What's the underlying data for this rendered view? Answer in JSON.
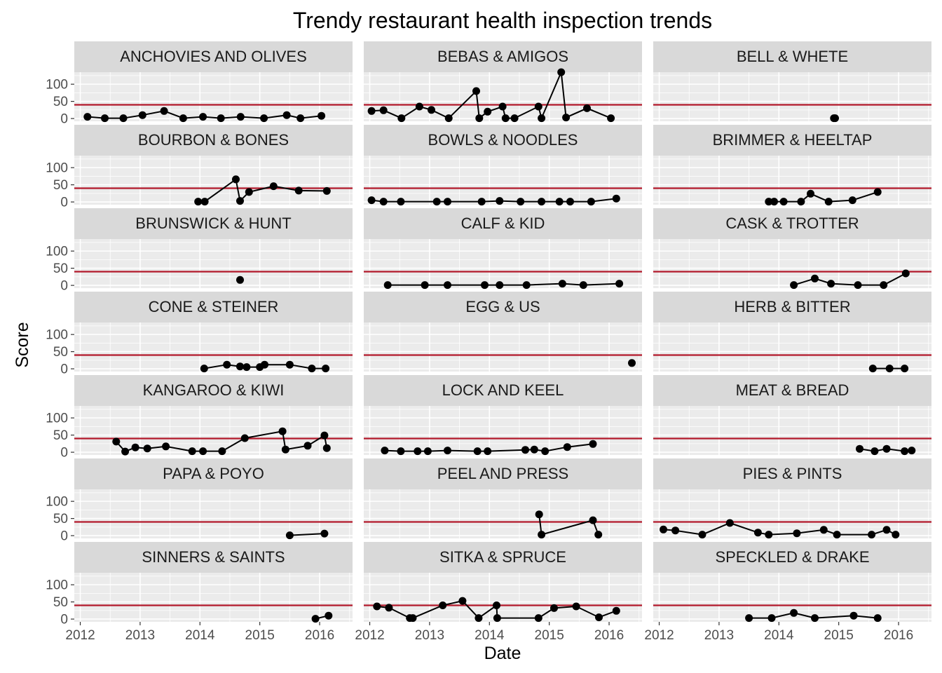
{
  "chart_data": {
    "type": "line",
    "title": "Trendy restaurant health inspection trends",
    "xlabel": "Date",
    "ylabel": "Score",
    "layout": "facet grid, 7 rows x 3 columns",
    "xlim": [
      2011.9,
      2016.55
    ],
    "ylim": [
      -8,
      135
    ],
    "x_ticks": [
      "2012",
      "2013",
      "2014",
      "2015",
      "2016"
    ],
    "y_ticks": [
      "0",
      "50",
      "100"
    ],
    "reference_line": {
      "y": 40,
      "color": "#b2182b"
    },
    "colors": {
      "panel_background": "#ebebeb",
      "grid": "#ffffff",
      "strip_background": "#d9d9d9",
      "points": "#000000"
    },
    "facets": [
      {
        "name": "ANCHOVIES AND OLIVES",
        "points": [
          [
            2012.12,
            5
          ],
          [
            2012.41,
            1
          ],
          [
            2012.72,
            1
          ],
          [
            2013.04,
            10
          ],
          [
            2013.4,
            22
          ],
          [
            2013.72,
            1
          ],
          [
            2014.05,
            5
          ],
          [
            2014.35,
            1
          ],
          [
            2014.68,
            5
          ],
          [
            2015.07,
            1
          ],
          [
            2015.45,
            10
          ],
          [
            2015.68,
            1
          ],
          [
            2016.03,
            8
          ]
        ]
      },
      {
        "name": "BEBAS & AMIGOS",
        "points": [
          [
            2012.03,
            22
          ],
          [
            2012.23,
            24
          ],
          [
            2012.53,
            1
          ],
          [
            2012.83,
            35
          ],
          [
            2013.03,
            25
          ],
          [
            2013.32,
            1
          ],
          [
            2013.78,
            80
          ],
          [
            2013.83,
            1
          ],
          [
            2013.97,
            20
          ],
          [
            2014.22,
            35
          ],
          [
            2014.27,
            1
          ],
          [
            2014.42,
            1
          ],
          [
            2014.82,
            35
          ],
          [
            2014.87,
            1
          ],
          [
            2015.2,
            135
          ],
          [
            2015.28,
            3
          ],
          [
            2015.63,
            30
          ],
          [
            2016.03,
            1
          ]
        ]
      },
      {
        "name": "BELL & WHETE",
        "points": [
          [
            2014.92,
            1
          ],
          [
            2014.94,
            1
          ]
        ]
      },
      {
        "name": "BOURBON & BONES",
        "points": [
          [
            2013.97,
            1
          ],
          [
            2014.08,
            1
          ],
          [
            2014.6,
            66
          ],
          [
            2014.67,
            3
          ],
          [
            2014.82,
            29
          ],
          [
            2015.23,
            46
          ],
          [
            2015.65,
            33
          ],
          [
            2016.12,
            32
          ]
        ]
      },
      {
        "name": "BOWLS & NOODLES",
        "points": [
          [
            2012.03,
            5
          ],
          [
            2012.23,
            1
          ],
          [
            2012.52,
            1
          ],
          [
            2013.12,
            1
          ],
          [
            2013.3,
            1
          ],
          [
            2013.87,
            1
          ],
          [
            2014.17,
            3
          ],
          [
            2014.52,
            1
          ],
          [
            2014.87,
            1
          ],
          [
            2015.17,
            1
          ],
          [
            2015.35,
            1
          ],
          [
            2015.7,
            1
          ],
          [
            2016.12,
            10
          ]
        ]
      },
      {
        "name": "BRIMMER & HEELTAP",
        "points": [
          [
            2013.83,
            1
          ],
          [
            2013.92,
            1
          ],
          [
            2014.08,
            1
          ],
          [
            2014.37,
            1
          ],
          [
            2014.53,
            24
          ],
          [
            2014.83,
            1
          ],
          [
            2015.23,
            5
          ],
          [
            2015.65,
            29
          ]
        ]
      },
      {
        "name": "BRUNSWICK & HUNT",
        "points": [
          [
            2014.67,
            16
          ]
        ]
      },
      {
        "name": "CALF & KID",
        "points": [
          [
            2012.3,
            1
          ],
          [
            2012.92,
            1
          ],
          [
            2013.3,
            1
          ],
          [
            2013.92,
            1
          ],
          [
            2014.17,
            1
          ],
          [
            2014.62,
            1
          ],
          [
            2015.22,
            5
          ],
          [
            2015.57,
            1
          ],
          [
            2016.17,
            5
          ]
        ]
      },
      {
        "name": "CASK & TROTTER",
        "points": [
          [
            2014.25,
            1
          ],
          [
            2014.6,
            20
          ],
          [
            2014.87,
            5
          ],
          [
            2015.32,
            1
          ],
          [
            2015.75,
            1
          ],
          [
            2016.12,
            35
          ]
        ]
      },
      {
        "name": "CONE & STEINER",
        "points": [
          [
            2014.07,
            1
          ],
          [
            2014.45,
            12
          ],
          [
            2014.67,
            7
          ],
          [
            2014.78,
            5
          ],
          [
            2015,
            5
          ],
          [
            2015.08,
            12
          ],
          [
            2015.5,
            12
          ],
          [
            2015.87,
            1
          ],
          [
            2016.1,
            1
          ]
        ]
      },
      {
        "name": "EGG & US",
        "points": [
          [
            2016.38,
            17
          ]
        ]
      },
      {
        "name": "HERB & BITTER",
        "points": [
          [
            2015.57,
            1
          ],
          [
            2015.85,
            1
          ],
          [
            2016.1,
            1
          ]
        ]
      },
      {
        "name": "KANGAROO & KIWI",
        "points": [
          [
            2012.6,
            31
          ],
          [
            2012.75,
            2
          ],
          [
            2012.92,
            14
          ],
          [
            2013.12,
            11
          ],
          [
            2013.43,
            17
          ],
          [
            2013.87,
            3
          ],
          [
            2014.05,
            3
          ],
          [
            2014.37,
            3
          ],
          [
            2014.75,
            41
          ],
          [
            2015.38,
            61
          ],
          [
            2015.43,
            8
          ],
          [
            2015.8,
            19
          ],
          [
            2016.08,
            49
          ],
          [
            2016.12,
            12
          ]
        ]
      },
      {
        "name": "LOCK AND KEEL",
        "points": [
          [
            2012.25,
            5
          ],
          [
            2012.52,
            3
          ],
          [
            2012.8,
            3
          ],
          [
            2012.97,
            3
          ],
          [
            2013.3,
            5
          ],
          [
            2013.8,
            3
          ],
          [
            2013.97,
            3
          ],
          [
            2014.6,
            7
          ],
          [
            2014.75,
            8
          ],
          [
            2014.93,
            3
          ],
          [
            2015.3,
            15
          ],
          [
            2015.73,
            24
          ]
        ]
      },
      {
        "name": "MEAT & BREAD",
        "points": [
          [
            2015.35,
            10
          ],
          [
            2015.6,
            3
          ],
          [
            2015.8,
            10
          ],
          [
            2016.1,
            3
          ],
          [
            2016.22,
            5
          ]
        ]
      },
      {
        "name": "PAPA & POYO",
        "points": [
          [
            2015.5,
            1
          ],
          [
            2016.08,
            6
          ]
        ]
      },
      {
        "name": "PEEL AND PRESS",
        "points": [
          [
            2014.83,
            62
          ],
          [
            2014.87,
            3
          ],
          [
            2015.73,
            45
          ],
          [
            2015.82,
            3
          ]
        ]
      },
      {
        "name": "PIES & PINTS",
        "points": [
          [
            2012.07,
            18
          ],
          [
            2012.27,
            15
          ],
          [
            2012.72,
            3
          ],
          [
            2013.18,
            37
          ],
          [
            2013.65,
            9
          ],
          [
            2013.83,
            3
          ],
          [
            2014.3,
            7
          ],
          [
            2014.75,
            17
          ],
          [
            2014.97,
            3
          ],
          [
            2015.55,
            3
          ],
          [
            2015.8,
            17
          ],
          [
            2015.95,
            3
          ]
        ]
      },
      {
        "name": "SINNERS & SAINTS",
        "points": [
          [
            2015.93,
            1
          ],
          [
            2016.15,
            10
          ]
        ]
      },
      {
        "name": "SITKA & SPRUCE",
        "points": [
          [
            2012.12,
            37
          ],
          [
            2012.32,
            33
          ],
          [
            2012.67,
            3
          ],
          [
            2012.72,
            3
          ],
          [
            2013.22,
            40
          ],
          [
            2013.55,
            53
          ],
          [
            2013.82,
            3
          ],
          [
            2014.12,
            40
          ],
          [
            2014.13,
            3
          ],
          [
            2014.82,
            3
          ],
          [
            2015.08,
            32
          ],
          [
            2015.45,
            37
          ],
          [
            2015.83,
            5
          ],
          [
            2016.12,
            24
          ]
        ]
      },
      {
        "name": "SPECKLED & DRAKE",
        "points": [
          [
            2013.5,
            3
          ],
          [
            2013.88,
            3
          ],
          [
            2014.25,
            18
          ],
          [
            2014.6,
            3
          ],
          [
            2015.25,
            10
          ],
          [
            2015.65,
            3
          ]
        ]
      }
    ]
  }
}
